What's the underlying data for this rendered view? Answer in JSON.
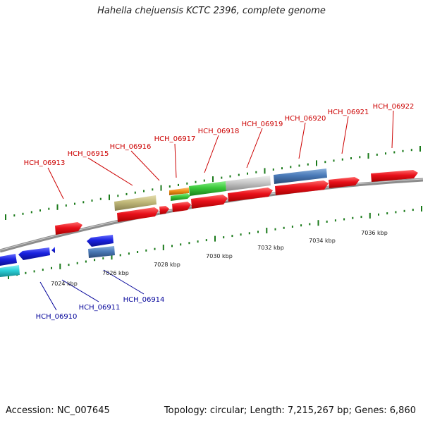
{
  "title": "Hahella chejuensis KCTC 2396, complete genome",
  "footer": {
    "accession": "Accession: NC_007645",
    "summary": "Topology: circular; Length: 7,215,267 bp; Genes: 6,860"
  },
  "colors": {
    "forward_label": "#cc0000",
    "reverse_label": "#000099",
    "backbone": "#8c8c8c",
    "tick": "#1a7a1a",
    "gene_red": "#e8101a",
    "gene_blue": "#1a22e0",
    "gene_cyan": "#2ad0d8",
    "gene_steelblue": "#4a7ab8",
    "gene_olive": "#c0b878",
    "gene_green": "#3ac83a",
    "gene_orange": "#f0901a",
    "gene_silver": "#c8c8c8"
  },
  "ruler": {
    "ticks": [
      "7024 kbp",
      "7026 kbp",
      "7028 kbp",
      "7030 kbp",
      "7032 kbp",
      "7034 kbp",
      "7036 kbp"
    ]
  },
  "forward_genes": [
    "HCH_06913",
    "HCH_06915",
    "HCH_06916",
    "HCH_06917",
    "HCH_06918",
    "HCH_06919",
    "HCH_06920",
    "HCH_06921",
    "HCH_06922"
  ],
  "reverse_genes": [
    "HCH_06910",
    "HCH_06911",
    "HCH_06914"
  ]
}
